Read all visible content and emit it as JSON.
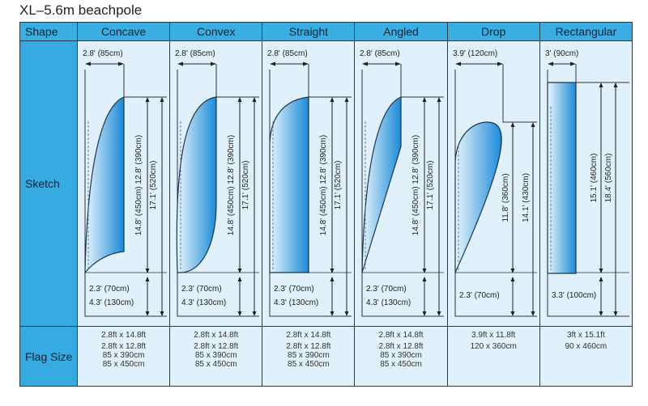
{
  "title": "XL–5.6m beachpole",
  "header_label": "Shape",
  "row_labels": {
    "sketch": "Sketch",
    "flag_size": "Flag Size"
  },
  "colors": {
    "header": "#3aaee2",
    "cell": "#e0f1fb",
    "flag_dark": "#1a8ad8",
    "flag_light": "#e8f5fc"
  },
  "columns": [
    {
      "name": "Concave",
      "shape": "concave",
      "width_label": "2.8' (85cm)",
      "height_inner": "14.8' (450cm) 12.8' (390cm)",
      "height_outer": "17.1' (520cm)",
      "bottom_labels": [
        "2.3' (70cm)",
        "4.3' (130cm)"
      ],
      "flag_size": [
        "2.8ft x 14.8ft",
        "2.8ft x 12.8ft",
        "85 x 390cm",
        "85 x 450cm"
      ]
    },
    {
      "name": "Convex",
      "shape": "convex",
      "width_label": "2.8' (85cm)",
      "height_inner": "14.8' (450cm) 12.8' (390cm)",
      "height_outer": "17.1' (520cm)",
      "bottom_labels": [
        "2.3' (70cm)",
        "4.3' (130cm)"
      ],
      "flag_size": [
        "2.8ft x 14.8ft",
        "2.8ft x 12.8ft",
        "85 x 390cm",
        "85 x 450cm"
      ]
    },
    {
      "name": "Straight",
      "shape": "straight",
      "width_label": "2.8' (85cm)",
      "height_inner": "14.8' (450cm) 12.8' (390cm)",
      "height_outer": "17.1' (520cm)",
      "bottom_labels": [
        "2.3' (70cm)",
        "4.3' (130cm)"
      ],
      "flag_size": [
        "2.8ft x 14.8ft",
        "2.8ft x 12.8ft",
        "85 x 390cm",
        "85 x 450cm"
      ]
    },
    {
      "name": "Angled",
      "shape": "angled",
      "width_label": "2.8' (85cm)",
      "height_inner": "14.8' (450cm) 12.8' (390cm)",
      "height_outer": "17.1' (520cm)",
      "bottom_labels": [
        "2.3' (70cm)",
        "4.3' (130cm)"
      ],
      "flag_size": [
        "2.8ft x 14.8ft",
        "2.8ft x 12.8ft",
        "85 x 390cm",
        "85 x 450cm"
      ]
    },
    {
      "name": "Drop",
      "shape": "drop",
      "width_label": "3.9' (120cm)",
      "height_inner": "11.8' (360cm)",
      "height_outer": "14.1' (430cm)",
      "bottom_labels": [
        "2.3' (70cm)"
      ],
      "flag_size": [
        "3.9ft x 11.8ft",
        "120 x 360cm"
      ]
    },
    {
      "name": "Rectangular",
      "shape": "rect",
      "width_label": "3' (90cm)",
      "height_inner": "15.1' (460cm)",
      "height_outer": "18.4' (560cm)",
      "bottom_labels": [
        "3.3' (100cm)"
      ],
      "flag_size": [
        "3ft x 15.1ft",
        "90 x 460cm"
      ]
    }
  ]
}
